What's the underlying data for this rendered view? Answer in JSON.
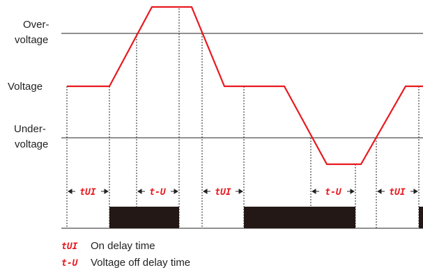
{
  "levels": {
    "over_line1": "Over-",
    "over_line2": "voltage",
    "voltage": "Voltage",
    "under_line1": "Under-",
    "under_line2": "voltage"
  },
  "intervals": {
    "on_delay": "tUI",
    "off_delay": "t-U"
  },
  "legend": [
    {
      "code": "tUI",
      "text": "On delay time"
    },
    {
      "code": "t-U",
      "text": "Voltage off delay time"
    }
  ],
  "colors": {
    "signal": "#e8191f",
    "output": "#231815",
    "line": "#222222"
  }
}
